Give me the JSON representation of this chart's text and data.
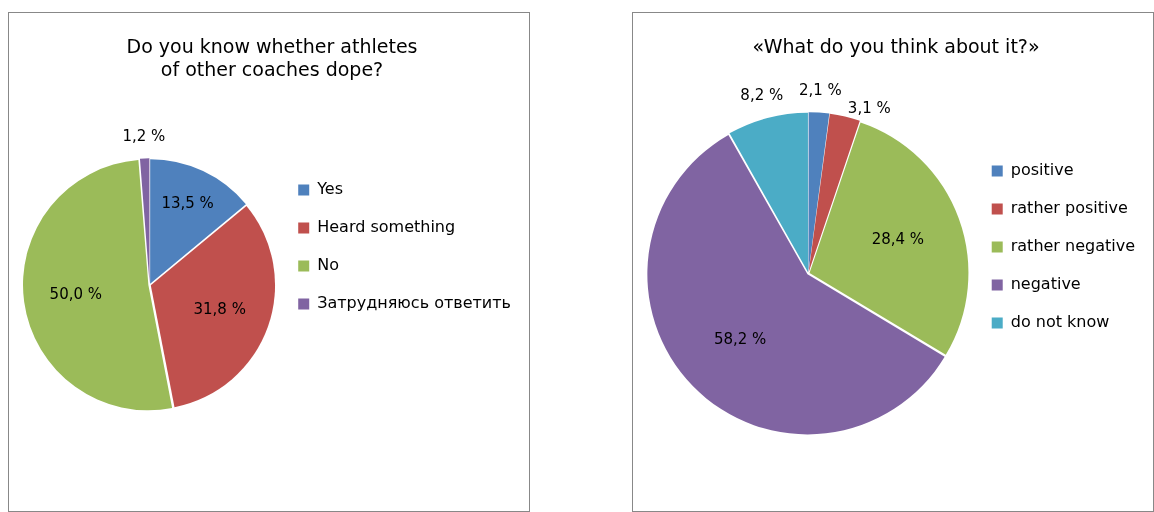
{
  "chart_data": [
    {
      "type": "pie",
      "title": "Do you know whether athletes\nof other coaches dope?",
      "categories": [
        "Yes",
        "Heard something",
        "No",
        "Затрудняюсь ответить"
      ],
      "values": [
        13.5,
        31.8,
        50.0,
        1.2
      ],
      "colors": [
        "#4f81bd",
        "#c0504d",
        "#9bbb59",
        "#8064a2"
      ],
      "value_labels": [
        "13,5 %",
        "31,8 %",
        "50,0 %",
        "1,2 %"
      ],
      "legend": "right"
    },
    {
      "type": "pie",
      "title": "«What do you think about it?»",
      "categories": [
        "positive",
        "rather positive",
        "rather negative",
        "negative",
        "do not know"
      ],
      "values": [
        2.1,
        3.1,
        28.4,
        58.2,
        8.2
      ],
      "colors": [
        "#4f81bd",
        "#c0504d",
        "#9bbb59",
        "#8064a2",
        "#4bacc6"
      ],
      "value_labels": [
        "2,1 %",
        "3,1 %",
        "28,4 %",
        "58,2 %",
        "8,2 %"
      ],
      "legend": "right"
    }
  ]
}
